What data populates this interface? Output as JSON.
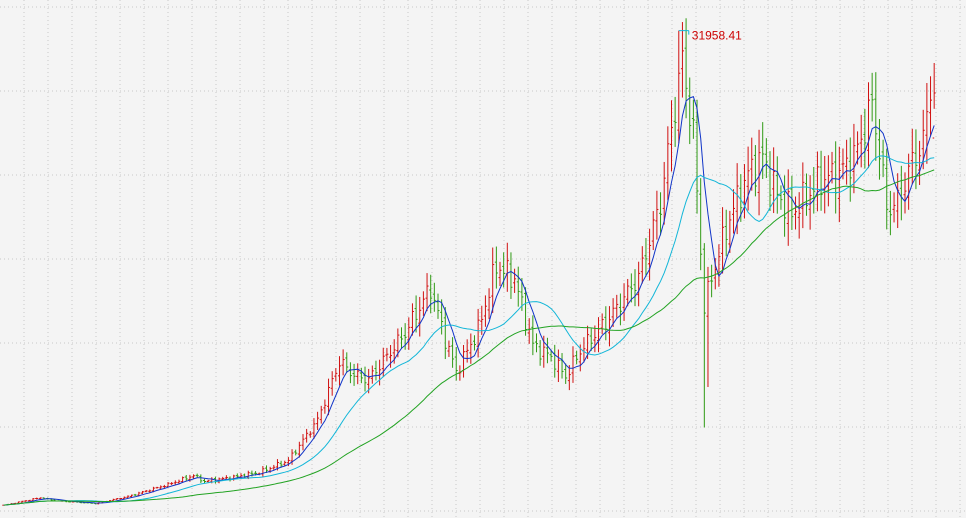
{
  "chart_data": {
    "type": "candlestick",
    "title": "",
    "xlabel": "",
    "ylabel": "",
    "grid": true,
    "legend": "none",
    "ylim": [
      0,
      33600
    ],
    "peak_annotation": {
      "label": "31958.41",
      "value": 31958.41,
      "index": 185
    },
    "colors": {
      "up": "#d01010",
      "down": "#2f9a14",
      "ma_short": "#1034c8",
      "ma_mid": "#12b6d8",
      "ma_long": "#22a322",
      "grid": "#c8c8c8",
      "background": "#f4f4f4",
      "peak_label": "#cc0000"
    },
    "close_anchors": [
      [
        0,
        320
      ],
      [
        10,
        820
      ],
      [
        14,
        620
      ],
      [
        25,
        430
      ],
      [
        34,
        900
      ],
      [
        45,
        1700
      ],
      [
        52,
        2300
      ],
      [
        55,
        1900
      ],
      [
        62,
        2150
      ],
      [
        70,
        2500
      ],
      [
        78,
        3300
      ],
      [
        86,
        6000
      ],
      [
        92,
        9900
      ],
      [
        96,
        9000
      ],
      [
        100,
        8700
      ],
      [
        110,
        11800
      ],
      [
        117,
        14800
      ],
      [
        121,
        11400
      ],
      [
        124,
        9200
      ],
      [
        130,
        12000
      ],
      [
        135,
        16300
      ],
      [
        140,
        15400
      ],
      [
        145,
        11000
      ],
      [
        150,
        10200
      ],
      [
        154,
        8900
      ],
      [
        158,
        10600
      ],
      [
        166,
        12800
      ],
      [
        174,
        15500
      ],
      [
        180,
        20500
      ],
      [
        184,
        27000
      ],
      [
        186,
        30000
      ],
      [
        189,
        25000
      ],
      [
        192,
        13500
      ],
      [
        194,
        15500
      ],
      [
        199,
        19500
      ],
      [
        204,
        22400
      ],
      [
        208,
        23500
      ],
      [
        212,
        21000
      ],
      [
        216,
        19800
      ],
      [
        220,
        20900
      ],
      [
        224,
        22000
      ],
      [
        229,
        22400
      ],
      [
        234,
        24000
      ],
      [
        238,
        27100
      ],
      [
        240,
        24000
      ],
      [
        242,
        20100
      ],
      [
        245,
        20500
      ],
      [
        249,
        23200
      ],
      [
        252,
        24500
      ],
      [
        254,
        28200
      ]
    ]
  }
}
